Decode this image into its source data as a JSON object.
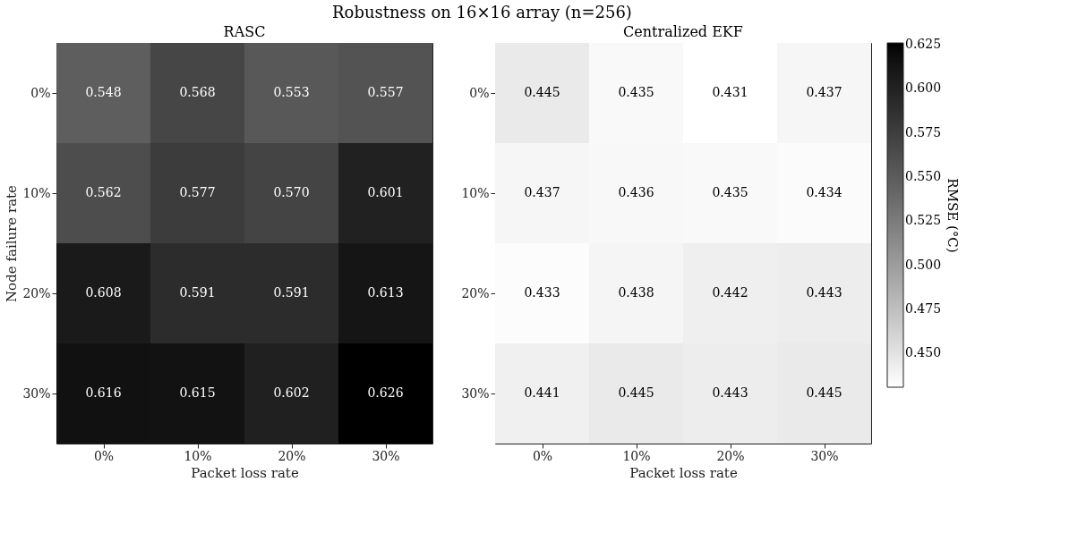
{
  "chart_data": [
    {
      "type": "heatmap",
      "title": "RASC",
      "annotations": [
        "Robustness on 16×16 array (n=256)"
      ],
      "xlabel": "Packet loss rate",
      "ylabel": "Node failure rate",
      "categories": [
        "0%",
        "10%",
        "20%",
        "30%"
      ],
      "y_categories": [
        "0%",
        "10%",
        "20%",
        "30%"
      ],
      "cells": [
        [
          0.548,
          0.568,
          0.553,
          0.557
        ],
        [
          0.562,
          0.577,
          0.57,
          0.601
        ],
        [
          0.608,
          0.591,
          0.591,
          0.613
        ],
        [
          0.616,
          0.615,
          0.602,
          0.626
        ]
      ],
      "cell_labels": [
        [
          "0.548",
          "0.568",
          "0.553",
          "0.557"
        ],
        [
          "0.562",
          "0.577",
          "0.570",
          "0.601"
        ],
        [
          "0.608",
          "0.591",
          "0.591",
          "0.613"
        ],
        [
          "0.616",
          "0.615",
          "0.602",
          "0.626"
        ]
      ],
      "data_labels": true
    },
    {
      "type": "heatmap",
      "title": "Centralized EKF",
      "xlabel": "Packet loss rate",
      "clabel": "RMSE (°C)",
      "categories": [
        "0%",
        "10%",
        "20%",
        "30%"
      ],
      "y_categories": [
        "0%",
        "10%",
        "20%",
        "30%"
      ],
      "cells": [
        [
          0.445,
          0.435,
          0.431,
          0.437
        ],
        [
          0.437,
          0.436,
          0.435,
          0.434
        ],
        [
          0.433,
          0.438,
          0.442,
          0.443
        ],
        [
          0.441,
          0.445,
          0.443,
          0.445
        ]
      ],
      "cell_labels": [
        [
          "0.445",
          "0.435",
          "0.431",
          "0.437"
        ],
        [
          "0.437",
          "0.436",
          "0.435",
          "0.434"
        ],
        [
          "0.433",
          "0.438",
          "0.442",
          "0.443"
        ],
        [
          "0.441",
          "0.445",
          "0.443",
          "0.445"
        ]
      ],
      "data_labels": true,
      "clim": [
        0.431,
        0.626
      ],
      "cticks": [
        {
          "value": 0.45,
          "label": "0.450"
        },
        {
          "value": 0.475,
          "label": "0.475"
        },
        {
          "value": 0.5,
          "label": "0.500"
        },
        {
          "value": 0.525,
          "label": "0.525"
        },
        {
          "value": 0.55,
          "label": "0.550"
        },
        {
          "value": 0.575,
          "label": "0.575"
        },
        {
          "value": 0.6,
          "label": "0.600"
        },
        {
          "value": 0.625,
          "label": "0.625"
        }
      ]
    }
  ]
}
